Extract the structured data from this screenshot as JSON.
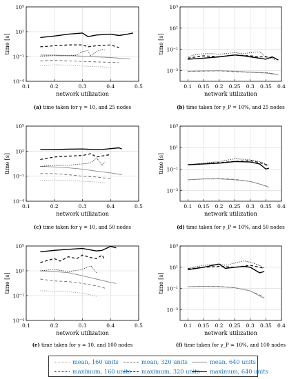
{
  "styles": {
    "mean, 160 units": {
      "color": "#9a9a9a",
      "width": 0.9,
      "dash": "1.2 1.6"
    },
    "maximum, 160 units": {
      "color": "#222222",
      "width": 0.9,
      "dash": "1.2 1.6"
    },
    "mean, 320 units": {
      "color": "#666666",
      "width": 0.9,
      "dash": "4 3"
    },
    "maximum, 320 units": {
      "color": "#111111",
      "width": 1.3,
      "dash": "4 3"
    },
    "mean, 640 units": {
      "color": "#888888",
      "width": 0.9,
      "dash": ""
    },
    "maximum, 640 units": {
      "color": "#000000",
      "width": 1.4,
      "dash": ""
    }
  },
  "legend": {
    "items": [
      {
        "label": "mean, 160 units"
      },
      {
        "label": "mean, 320 units"
      },
      {
        "label": "mean, 640 units"
      },
      {
        "label": "maximum, 160 units"
      },
      {
        "label": "maximum, 320 units"
      },
      {
        "label": "maximum, 640 units"
      }
    ]
  },
  "chart_data": [
    {
      "type": "line",
      "caption_tag": "(a)",
      "caption": " time taken for γ = 10, and 25 nodes",
      "xlabel": "network utilization",
      "ylabel": "time [s]",
      "yscale": "log",
      "xlim": [
        0.1,
        0.5
      ],
      "xticks": [
        "0.1",
        "0.2",
        "0.3",
        "0.4",
        "0.5"
      ],
      "ylim": [
        0.0001,
        100000
      ],
      "yticks": [
        {
          "value": 0.0001,
          "label": "10⁻⁴"
        },
        {
          "value": 0.1,
          "label": "10⁻¹"
        },
        {
          "value": 100,
          "label": "10²"
        },
        {
          "value": 100000,
          "label": "10⁵"
        }
      ],
      "grid": true,
      "series": [
        {
          "name": "mean, 160 units",
          "x": [
            0.15,
            0.2,
            0.25,
            0.3,
            0.35,
            0.4
          ],
          "y": [
            0.008,
            0.01,
            0.009,
            0.007,
            0.006,
            0.005
          ]
        },
        {
          "name": "mean, 320 units",
          "x": [
            0.15,
            0.2,
            0.25,
            0.3,
            0.35,
            0.4,
            0.43
          ],
          "y": [
            0.03,
            0.035,
            0.03,
            0.025,
            0.022,
            0.02,
            0.018
          ]
        },
        {
          "name": "mean, 640 units",
          "x": [
            0.15,
            0.2,
            0.25,
            0.3,
            0.35,
            0.4,
            0.47
          ],
          "y": [
            0.15,
            0.15,
            0.13,
            0.11,
            0.09,
            0.075,
            0.05
          ]
        },
        {
          "name": "maximum, 160 units",
          "x": [
            0.15,
            0.2,
            0.25,
            0.28,
            0.3,
            0.32,
            0.33,
            0.35,
            0.37,
            0.38
          ],
          "y": [
            0.11,
            0.13,
            0.12,
            0.15,
            0.4,
            0.5,
            0.12,
            0.4,
            0.7,
            0.6
          ]
        },
        {
          "name": "maximum, 320 units",
          "x": [
            0.15,
            0.2,
            0.25,
            0.3,
            0.32,
            0.35,
            0.4,
            0.43
          ],
          "y": [
            1.5,
            2.0,
            2.5,
            2.5,
            1.5,
            2.0,
            2.5,
            1.2
          ]
        },
        {
          "name": "maximum, 640 units",
          "x": [
            0.15,
            0.2,
            0.25,
            0.3,
            0.32,
            0.35,
            0.4,
            0.43,
            0.46,
            0.48
          ],
          "y": [
            20,
            30,
            50,
            70,
            25,
            40,
            50,
            35,
            50,
            70
          ]
        }
      ]
    },
    {
      "type": "line",
      "caption_tag": "(b)",
      "caption": " time taken for γ_P = 10%, and 25 nodes",
      "xlabel": "network utilization",
      "ylabel": "time [s]",
      "yscale": "log",
      "xlim": [
        0.075,
        0.4
      ],
      "xticks": [
        "0.1",
        "0.15",
        "0.2",
        "0.25",
        "0.3",
        "0.35",
        "0.4"
      ],
      "ylim": [
        0.0001,
        1000
      ],
      "yticks": [
        {
          "value": 0.001,
          "label": "10⁻³"
        },
        {
          "value": 0.1,
          "label": "10⁻¹"
        },
        {
          "value": 10,
          "label": "10¹"
        },
        {
          "value": 1000,
          "label": "10³"
        }
      ],
      "grid": true,
      "series": [
        {
          "name": "mean, 160 units",
          "x": [
            0.1,
            0.15,
            0.2,
            0.25,
            0.3,
            0.35,
            0.38
          ],
          "y": [
            0.0009,
            0.001,
            0.00095,
            0.0009,
            0.0008,
            0.0007,
            0.0005
          ]
        },
        {
          "name": "mean, 320 units",
          "x": [
            0.1,
            0.15,
            0.2,
            0.25,
            0.3,
            0.35,
            0.38
          ],
          "y": [
            0.00085,
            0.0009,
            0.00095,
            0.0008,
            0.0007,
            0.00065,
            0.0005
          ]
        },
        {
          "name": "mean, 640 units",
          "x": [
            0.1,
            0.15,
            0.2,
            0.25,
            0.3,
            0.35,
            0.39
          ],
          "y": [
            0.0009,
            0.00095,
            0.001,
            0.0009,
            0.0007,
            0.0006,
            0.0004
          ]
        },
        {
          "name": "maximum, 160 units",
          "x": [
            0.1,
            0.12,
            0.15,
            0.18,
            0.2,
            0.25,
            0.28,
            0.3,
            0.33,
            0.35,
            0.38
          ],
          "y": [
            0.02,
            0.03,
            0.04,
            0.04,
            0.035,
            0.05,
            0.04,
            0.05,
            0.06,
            0.02,
            0.01
          ]
        },
        {
          "name": "maximum, 320 units",
          "x": [
            0.1,
            0.15,
            0.2,
            0.25,
            0.3,
            0.33,
            0.35,
            0.38
          ],
          "y": [
            0.015,
            0.025,
            0.02,
            0.03,
            0.025,
            0.02,
            0.02,
            0.015
          ]
        },
        {
          "name": "maximum, 640 units",
          "x": [
            0.1,
            0.15,
            0.2,
            0.25,
            0.28,
            0.3,
            0.33,
            0.35,
            0.37,
            0.39
          ],
          "y": [
            0.012,
            0.015,
            0.02,
            0.03,
            0.025,
            0.02,
            0.015,
            0.012,
            0.02,
            0.01
          ]
        }
      ]
    },
    {
      "type": "line",
      "caption_tag": "(c)",
      "caption": " time taken for γ = 10, and 50 nodes",
      "xlabel": "network utilization",
      "ylabel": "time [s]",
      "yscale": "log",
      "xlim": [
        0.1,
        0.5
      ],
      "xticks": [
        "0.1",
        "0.2",
        "0.3",
        "0.4",
        "0.5"
      ],
      "ylim": [
        0.0001,
        100000
      ],
      "yticks": [
        {
          "value": 0.0001,
          "label": "10⁻⁴"
        },
        {
          "value": 0.1,
          "label": "10⁻¹"
        },
        {
          "value": 100,
          "label": "10²"
        },
        {
          "value": 100000,
          "label": "10⁵"
        }
      ],
      "grid": true,
      "series": [
        {
          "name": "mean, 160 units",
          "x": [
            0.15,
            0.2,
            0.25,
            0.3,
            0.35,
            0.38
          ],
          "y": [
            0.03,
            0.035,
            0.03,
            0.025,
            0.02,
            0.015
          ]
        },
        {
          "name": "mean, 320 units",
          "x": [
            0.15,
            0.2,
            0.25,
            0.3,
            0.35,
            0.4
          ],
          "y": [
            0.2,
            0.2,
            0.15,
            0.1,
            0.08,
            0.05
          ]
        },
        {
          "name": "mean, 640 units",
          "x": [
            0.15,
            0.2,
            0.25,
            0.3,
            0.35,
            0.4,
            0.44
          ],
          "y": [
            1.5,
            1.3,
            1.0,
            0.7,
            0.4,
            0.25,
            0.15
          ]
        },
        {
          "name": "maximum, 160 units",
          "x": [
            0.15,
            0.2,
            0.25,
            0.3,
            0.33,
            0.35,
            0.37,
            0.38
          ],
          "y": [
            1.5,
            2.0,
            2.0,
            3.0,
            4.0,
            15,
            2.0,
            5.0
          ]
        },
        {
          "name": "maximum, 320 units",
          "x": [
            0.15,
            0.2,
            0.25,
            0.3,
            0.33,
            0.35,
            0.38,
            0.4
          ],
          "y": [
            10,
            20,
            25,
            30,
            50,
            20,
            30,
            40
          ]
        },
        {
          "name": "maximum, 640 units",
          "x": [
            0.15,
            0.2,
            0.25,
            0.3,
            0.35,
            0.37,
            0.4,
            0.43,
            0.44
          ],
          "y": [
            150,
            160,
            170,
            180,
            150,
            160,
            200,
            250,
            180
          ]
        }
      ]
    },
    {
      "type": "line",
      "caption_tag": "(d)",
      "caption": " time taken for γ_P = 10%, and 50 nodes",
      "xlabel": "network utilization",
      "ylabel": "time [s]",
      "yscale": "log",
      "xlim": [
        0.075,
        0.4
      ],
      "xticks": [
        "0.1",
        "0.15",
        "0.2",
        "0.25",
        "0.3",
        "0.35",
        "0.4"
      ],
      "ylim": [
        0.0001,
        1000
      ],
      "yticks": [
        {
          "value": 0.001,
          "label": "10⁻³"
        },
        {
          "value": 0.1,
          "label": "10⁻¹"
        },
        {
          "value": 10,
          "label": "10¹"
        },
        {
          "value": 1000,
          "label": "10³"
        }
      ],
      "grid": true,
      "series": [
        {
          "name": "mean, 160 units",
          "x": [
            0.1,
            0.15,
            0.2,
            0.25,
            0.3,
            0.33,
            0.36
          ],
          "y": [
            0.01,
            0.011,
            0.012,
            0.01,
            0.007,
            0.004,
            0.002
          ]
        },
        {
          "name": "mean, 320 units",
          "x": [
            0.1,
            0.15,
            0.2,
            0.25,
            0.3,
            0.33,
            0.36
          ],
          "y": [
            0.01,
            0.012,
            0.013,
            0.011,
            0.007,
            0.004,
            0.0022
          ]
        },
        {
          "name": "mean, 640 units",
          "x": [
            0.1,
            0.15,
            0.2,
            0.25,
            0.3,
            0.33,
            0.36
          ],
          "y": [
            0.01,
            0.012,
            0.012,
            0.01,
            0.007,
            0.004,
            0.002
          ]
        },
        {
          "name": "maximum, 160 units",
          "x": [
            0.1,
            0.15,
            0.2,
            0.25,
            0.28,
            0.3,
            0.33,
            0.35,
            0.36
          ],
          "y": [
            0.25,
            0.35,
            0.5,
            0.9,
            0.8,
            0.7,
            0.5,
            0.3,
            0.2
          ]
        },
        {
          "name": "maximum, 320 units",
          "x": [
            0.1,
            0.15,
            0.2,
            0.25,
            0.3,
            0.33,
            0.35,
            0.36
          ],
          "y": [
            0.25,
            0.3,
            0.4,
            0.5,
            0.6,
            0.4,
            0.25,
            0.2
          ]
        },
        {
          "name": "maximum, 640 units",
          "x": [
            0.1,
            0.15,
            0.2,
            0.25,
            0.3,
            0.33,
            0.35,
            0.36
          ],
          "y": [
            0.25,
            0.3,
            0.35,
            0.5,
            0.45,
            0.3,
            0.1,
            0.12
          ]
        }
      ]
    },
    {
      "type": "line",
      "caption_tag": "(e)",
      "caption": " time taken for γ = 10, and 100 nodes",
      "xlabel": "network utilization",
      "ylabel": "time [s]",
      "yscale": "log",
      "xlim": [
        0.1,
        0.5
      ],
      "xticks": [
        "0.1",
        "0.2",
        "0.3",
        "0.4",
        "0.5"
      ],
      "ylim": [
        0.0001,
        100000
      ],
      "yticks": [
        {
          "value": 0.0001,
          "label": "10⁻⁴"
        },
        {
          "value": 0.1,
          "label": "10⁻¹"
        },
        {
          "value": 100,
          "label": "10²"
        },
        {
          "value": 100000,
          "label": "10⁵"
        }
      ],
      "grid": true,
      "series": [
        {
          "name": "mean, 160 units",
          "x": [
            0.15,
            0.2,
            0.25,
            0.3,
            0.35
          ],
          "y": [
            0.4,
            0.35,
            0.3,
            0.2,
            0.08
          ]
        },
        {
          "name": "mean, 320 units",
          "x": [
            0.15,
            0.2,
            0.25,
            0.3,
            0.35,
            0.38
          ],
          "y": [
            10,
            6,
            5,
            3,
            1.5,
            0.8
          ]
        },
        {
          "name": "mean, 640 units",
          "x": [
            0.15,
            0.2,
            0.25,
            0.3,
            0.35,
            0.4,
            0.42
          ],
          "y": [
            100,
            80,
            60,
            25,
            10,
            4,
            3
          ]
        },
        {
          "name": "maximum, 160 units",
          "x": [
            0.15,
            0.2,
            0.25,
            0.3,
            0.33,
            0.35
          ],
          "y": [
            100,
            150,
            80,
            150,
            400,
            60
          ]
        },
        {
          "name": "maximum, 320 units",
          "x": [
            0.15,
            0.2,
            0.22,
            0.25,
            0.28,
            0.3,
            0.33,
            0.35,
            0.37,
            0.38
          ],
          "y": [
            1000,
            3000,
            1500,
            5000,
            3000,
            8000,
            4000,
            3000,
            8000,
            2000
          ]
        },
        {
          "name": "maximum, 640 units",
          "x": [
            0.15,
            0.2,
            0.25,
            0.3,
            0.35,
            0.37,
            0.4,
            0.42
          ],
          "y": [
            20000,
            30000,
            40000,
            50000,
            25000,
            30000,
            90000,
            60000
          ]
        }
      ]
    },
    {
      "type": "line",
      "caption_tag": "(f)",
      "caption": " time taken for γ_P = 10%, and 100 nodes",
      "xlabel": "network utilization",
      "ylabel": "time [s]",
      "yscale": "log",
      "xlim": [
        0.075,
        0.4
      ],
      "xticks": [
        "0.1",
        "0.15",
        "0.2",
        "0.25",
        "0.3",
        "0.35",
        "0.4"
      ],
      "ylim": [
        0.0001,
        1000
      ],
      "yticks": [
        {
          "value": 0.001,
          "label": "10⁻³"
        },
        {
          "value": 0.1,
          "label": "10⁻¹"
        },
        {
          "value": 10,
          "label": "10¹"
        },
        {
          "value": 1000,
          "label": "10³"
        }
      ],
      "grid": true,
      "series": [
        {
          "name": "mean, 160 units",
          "x": [
            0.1,
            0.15,
            0.2,
            0.25,
            0.3,
            0.33,
            0.345
          ],
          "y": [
            0.15,
            0.16,
            0.15,
            0.12,
            0.06,
            0.02,
            0.012
          ]
        },
        {
          "name": "mean, 320 units",
          "x": [
            0.1,
            0.15,
            0.2,
            0.25,
            0.3,
            0.33,
            0.345
          ],
          "y": [
            0.15,
            0.16,
            0.16,
            0.12,
            0.06,
            0.025,
            0.015
          ]
        },
        {
          "name": "mean, 640 units",
          "x": [
            0.1,
            0.15,
            0.2,
            0.25,
            0.3,
            0.33,
            0.345
          ],
          "y": [
            0.15,
            0.16,
            0.15,
            0.12,
            0.06,
            0.02,
            0.012
          ]
        },
        {
          "name": "maximum, 160 units",
          "x": [
            0.1,
            0.15,
            0.2,
            0.22,
            0.25,
            0.28,
            0.3,
            0.33,
            0.345
          ],
          "y": [
            8,
            15,
            20,
            15,
            25,
            40,
            30,
            15,
            8
          ]
        },
        {
          "name": "maximum, 320 units",
          "x": [
            0.1,
            0.15,
            0.2,
            0.25,
            0.3,
            0.33,
            0.345
          ],
          "y": [
            7,
            10,
            12,
            10,
            15,
            10,
            8
          ]
        },
        {
          "name": "maximum, 640 units",
          "x": [
            0.1,
            0.15,
            0.2,
            0.22,
            0.25,
            0.28,
            0.3,
            0.33,
            0.345
          ],
          "y": [
            6,
            10,
            20,
            8,
            10,
            12,
            10,
            3,
            4
          ]
        }
      ]
    }
  ]
}
